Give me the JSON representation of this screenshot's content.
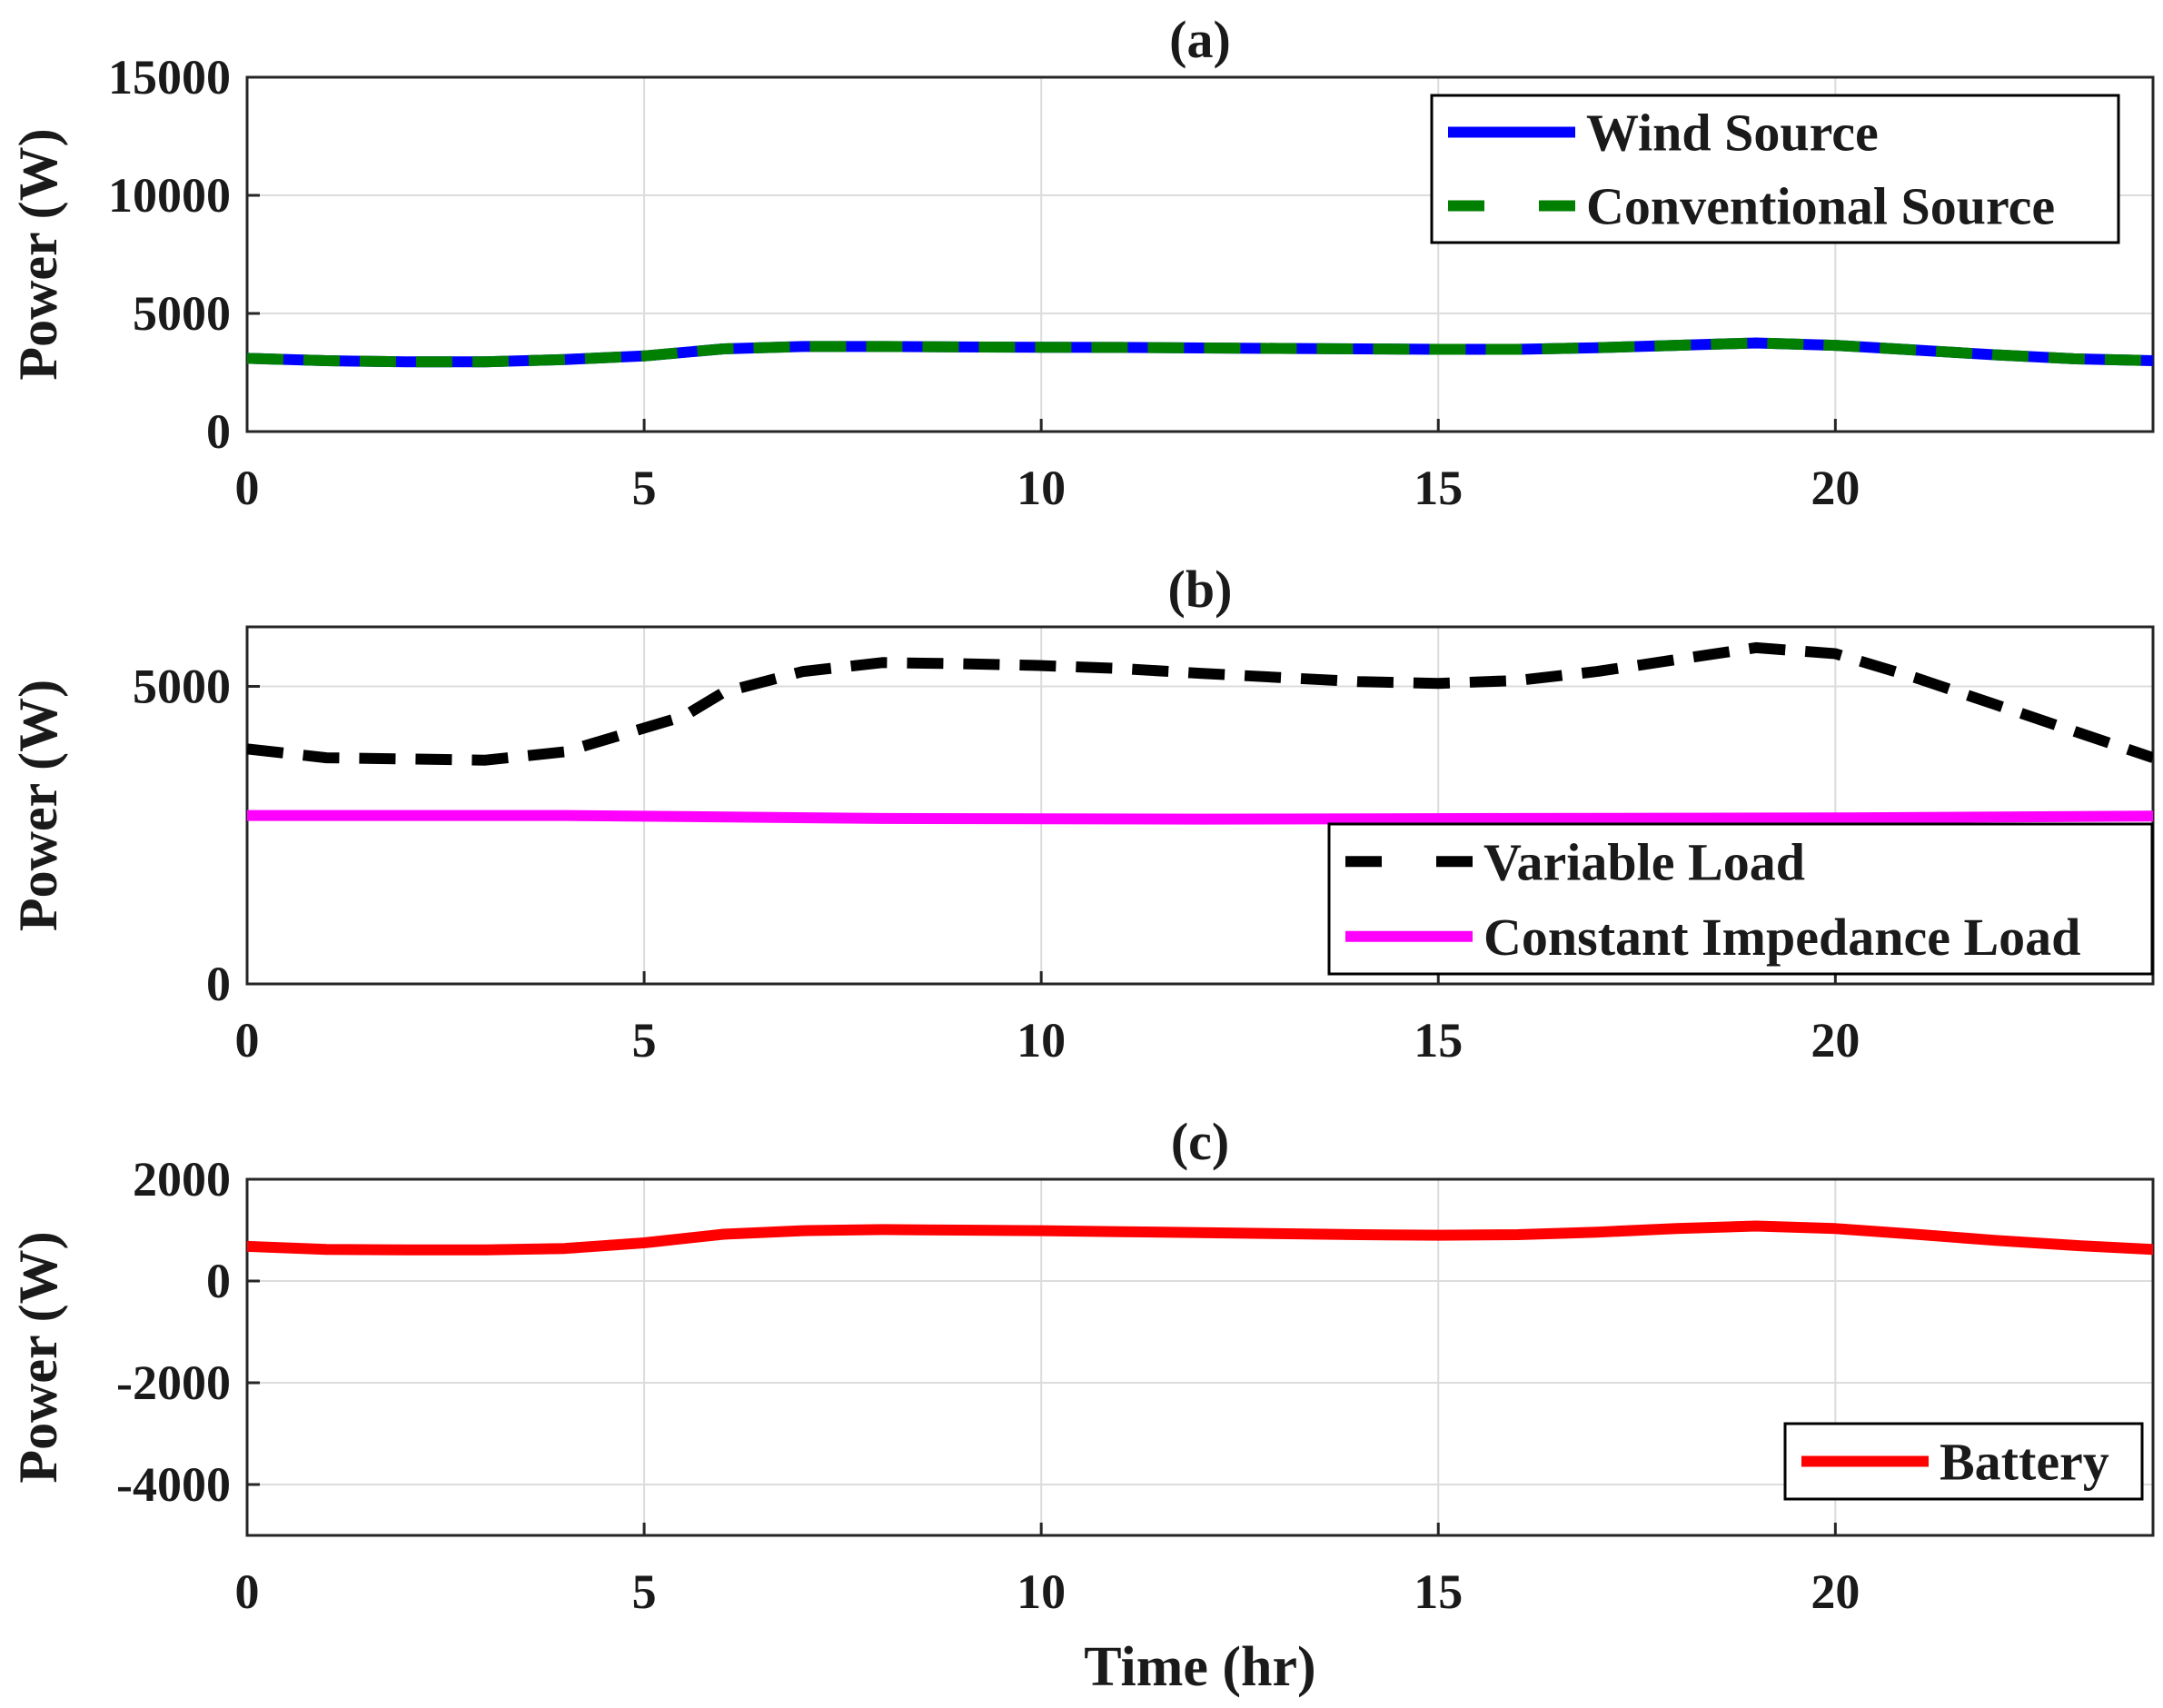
{
  "chart_data": [
    {
      "type": "line",
      "title": "(a)",
      "xlabel": "",
      "ylabel": "Power (W)",
      "xlim": [
        0,
        24
      ],
      "ylim": [
        0,
        15000
      ],
      "xticks": [
        "0",
        "5",
        "10",
        "15",
        "20"
      ],
      "yticks": [
        "0",
        "5000",
        "10000",
        "15000"
      ],
      "grid": true,
      "legend_position": "top-right",
      "series": [
        {
          "name": "Wind Source",
          "color": "#0000ff",
          "style": "solid",
          "x": [
            0,
            1,
            2,
            3,
            4,
            5,
            6,
            7,
            8,
            9,
            10,
            11,
            12,
            13,
            14,
            15,
            16,
            17,
            18,
            19,
            20,
            21,
            22,
            23,
            24
          ],
          "values": [
            3100,
            3000,
            2950,
            2950,
            3050,
            3200,
            3500,
            3600,
            3600,
            3580,
            3570,
            3560,
            3540,
            3520,
            3500,
            3480,
            3480,
            3550,
            3650,
            3750,
            3650,
            3450,
            3250,
            3080,
            3000
          ]
        },
        {
          "name": "Conventional Source",
          "color": "#007f00",
          "style": "dashed",
          "x": [
            0,
            1,
            2,
            3,
            4,
            5,
            6,
            7,
            8,
            9,
            10,
            11,
            12,
            13,
            14,
            15,
            16,
            17,
            18,
            19,
            20,
            21,
            22,
            23,
            24
          ],
          "values": [
            3100,
            3000,
            2950,
            2950,
            3050,
            3200,
            3500,
            3600,
            3600,
            3580,
            3570,
            3560,
            3540,
            3520,
            3500,
            3480,
            3480,
            3550,
            3650,
            3750,
            3650,
            3450,
            3250,
            3080,
            3000
          ]
        }
      ]
    },
    {
      "type": "line",
      "title": "(b)",
      "xlabel": "",
      "ylabel": "Power (W)",
      "xlim": [
        0,
        24
      ],
      "ylim": [
        0,
        6000
      ],
      "xticks": [
        "0",
        "5",
        "10",
        "15",
        "20"
      ],
      "yticks": [
        "0",
        "5000"
      ],
      "grid": true,
      "legend_position": "bottom-right",
      "series": [
        {
          "name": "Variable Load",
          "color": "#000000",
          "style": "dashed",
          "x": [
            0,
            1,
            2,
            3,
            4,
            5,
            5.5,
            6,
            7,
            8,
            9,
            10,
            11,
            12,
            13,
            14,
            15,
            16,
            17,
            18,
            19,
            20,
            21,
            22,
            23,
            24
          ],
          "values": [
            3950,
            3800,
            3780,
            3760,
            3900,
            4300,
            4500,
            4900,
            5250,
            5400,
            5380,
            5350,
            5300,
            5220,
            5150,
            5080,
            5050,
            5100,
            5250,
            5450,
            5650,
            5550,
            5150,
            4700,
            4250,
            3800
          ]
        },
        {
          "name": "Constant Impedance Load",
          "color": "#ff00ff",
          "style": "solid",
          "x": [
            0,
            4,
            8,
            12,
            16,
            20,
            24
          ],
          "values": [
            2830,
            2830,
            2780,
            2770,
            2780,
            2790,
            2820
          ]
        }
      ]
    },
    {
      "type": "line",
      "title": "(c)",
      "xlabel": "Time (hr)",
      "ylabel": "Power (W)",
      "xlim": [
        0,
        24
      ],
      "ylim": [
        -5000,
        2000
      ],
      "xticks": [
        "0",
        "5",
        "10",
        "15",
        "20"
      ],
      "yticks": [
        "2000",
        "0",
        "-2000",
        "-4000"
      ],
      "grid": true,
      "legend_position": "bottom-right",
      "series": [
        {
          "name": "Battery",
          "color": "#ff0000",
          "style": "solid",
          "x": [
            0,
            1,
            2,
            3,
            4,
            5,
            6,
            7,
            8,
            9,
            10,
            11,
            12,
            13,
            14,
            15,
            16,
            17,
            18,
            19,
            20,
            21,
            22,
            23,
            24
          ],
          "values": [
            680,
            620,
            610,
            610,
            640,
            750,
            920,
            990,
            1010,
            1000,
            990,
            970,
            950,
            930,
            910,
            900,
            910,
            960,
            1030,
            1080,
            1030,
            920,
            800,
            700,
            620
          ]
        }
      ]
    }
  ]
}
